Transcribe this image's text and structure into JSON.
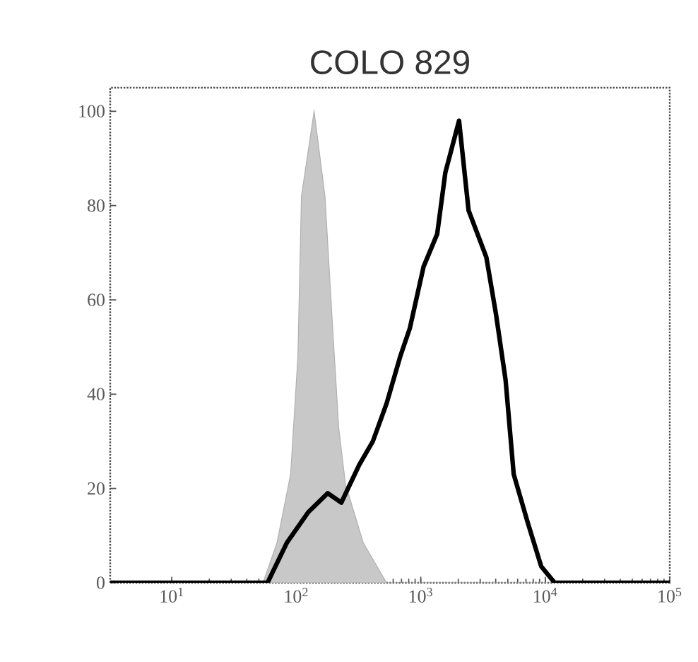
{
  "chart_data": {
    "type": "line",
    "title": "COLO 829",
    "log": "x",
    "xlim": [
      3.2,
      100000
    ],
    "ylim": [
      0,
      105
    ],
    "xticks": [
      {
        "value": 10,
        "label": "10$^{1}$"
      },
      {
        "value": 100,
        "label": "10$^{2}$"
      },
      {
        "value": 1000,
        "label": "10$^{3}$"
      },
      {
        "value": 10000,
        "label": "10$^{4}$"
      },
      {
        "value": 100000,
        "label": "10$^{5}$"
      }
    ],
    "yticks": [
      0,
      20,
      40,
      60,
      80,
      100
    ],
    "grid": false,
    "marker": "none",
    "series": [
      {
        "type": "area",
        "color": "#b0b0b0",
        "x": [
          3.2,
          40,
          54,
          70,
          90,
          103,
          110,
          139,
          170,
          193,
          219,
          248,
          345,
          531,
          100000
        ],
        "values": [
          0,
          0,
          0,
          8.5,
          23,
          48,
          82,
          100,
          82,
          57,
          33,
          21,
          8.5,
          0,
          0
        ]
      },
      {
        "color": "#000000",
        "x": [
          3.2,
          58.7,
          84,
          125,
          179,
          230,
          320,
          412,
          531,
          684,
          817,
          1052,
          1355,
          1575,
          2030,
          2420,
          3365,
          4018,
          4800,
          5175,
          5580,
          7190,
          9270,
          11900,
          100000
        ],
        "values": [
          0,
          0,
          8.5,
          15,
          19,
          17,
          25,
          30,
          38,
          48,
          54,
          67,
          74,
          87,
          98,
          79,
          69,
          57,
          43,
          33,
          23,
          13,
          3.5,
          0,
          0
        ]
      }
    ]
  }
}
